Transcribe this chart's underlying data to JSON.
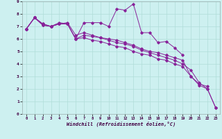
{
  "title": "",
  "xlabel": "Windchill (Refroidissement éolien,°C)",
  "ylabel": "",
  "bg_color": "#cdf0f0",
  "grid_color": "#b0ddd8",
  "line_color": "#882299",
  "xlim": [
    -0.5,
    23.5
  ],
  "ylim": [
    0,
    9
  ],
  "xticks": [
    0,
    1,
    2,
    3,
    4,
    5,
    6,
    7,
    8,
    9,
    10,
    11,
    12,
    13,
    14,
    15,
    16,
    17,
    18,
    19,
    20,
    21,
    22,
    23
  ],
  "yticks": [
    0,
    1,
    2,
    3,
    4,
    5,
    6,
    7,
    8,
    9
  ],
  "series": [
    [
      6.8,
      7.7,
      7.2,
      7.0,
      7.3,
      7.2,
      6.0,
      7.3,
      7.3,
      7.3,
      7.0,
      8.4,
      8.3,
      8.8,
      6.5,
      6.5,
      5.7,
      5.8,
      5.3,
      4.7,
      null,
      null,
      null,
      null
    ],
    [
      6.8,
      7.7,
      7.2,
      7.0,
      7.2,
      7.3,
      6.3,
      6.5,
      6.3,
      6.1,
      6.0,
      5.9,
      5.7,
      5.5,
      5.2,
      5.0,
      4.9,
      4.7,
      4.5,
      4.3,
      3.0,
      2.4,
      2.2,
      null
    ],
    [
      6.8,
      7.7,
      7.1,
      7.0,
      7.2,
      7.2,
      6.0,
      6.3,
      6.2,
      6.1,
      5.9,
      5.7,
      5.6,
      5.4,
      5.1,
      4.9,
      4.7,
      4.5,
      4.3,
      4.0,
      3.5,
      2.5,
      2.0,
      0.5
    ],
    [
      6.8,
      7.7,
      7.1,
      7.0,
      7.2,
      7.2,
      6.0,
      6.1,
      5.9,
      5.8,
      5.6,
      5.4,
      5.3,
      5.0,
      4.8,
      4.7,
      4.4,
      4.3,
      4.0,
      3.8,
      3.0,
      2.3,
      2.0,
      0.5
    ]
  ]
}
